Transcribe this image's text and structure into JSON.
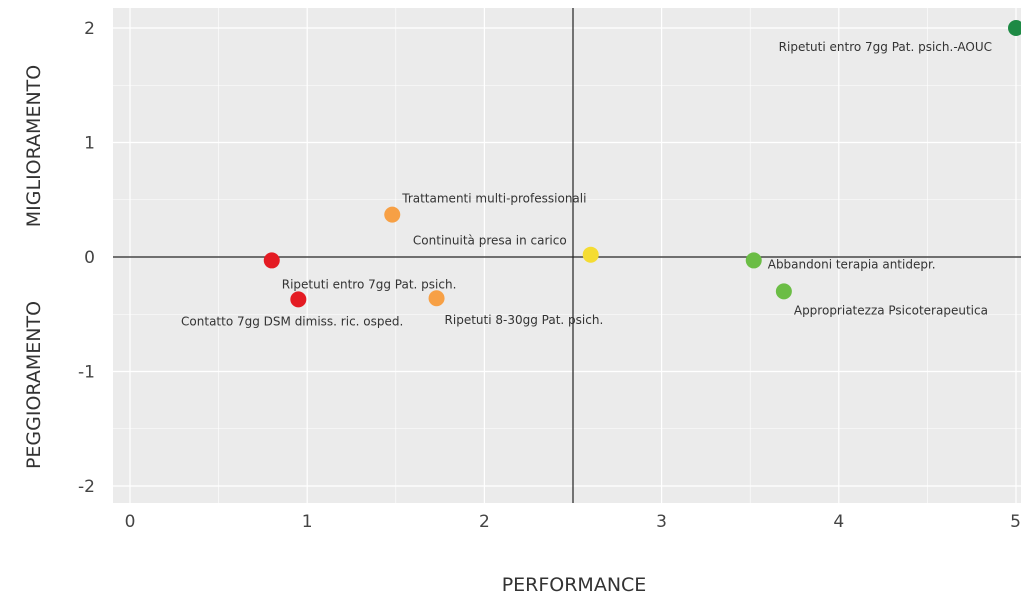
{
  "chart_data": {
    "type": "scatter",
    "xlabel": "PERFORMANCE",
    "ylabel_top": "MIGLIORAMENTO",
    "ylabel_bottom": "PEGGIORAMENTO",
    "xlim": [
      0,
      5
    ],
    "ylim": [
      -2,
      2
    ],
    "xticks": [
      0,
      1,
      2,
      3,
      4,
      5
    ],
    "yticks": [
      -2,
      -1,
      0,
      1,
      2
    ],
    "reference_lines": {
      "x": 2.5,
      "y": 0
    },
    "grid": true,
    "legend": "none",
    "background": "#ebebeb",
    "points": [
      {
        "label": "Ripetuti entro 7gg Pat. psich.-AOUC",
        "x": 5.0,
        "y": 2.0,
        "color": "#1e8a45"
      },
      {
        "label": "Trattamenti multi-professionali",
        "x": 1.48,
        "y": 0.37,
        "color": "#f7a045"
      },
      {
        "label": "Continuità presa in carico",
        "x": 2.6,
        "y": 0.02,
        "color": "#f5dc32"
      },
      {
        "label": "Abbandoni terapia antidepr.",
        "x": 3.52,
        "y": -0.03,
        "color": "#6bbd45"
      },
      {
        "label": "Appropriatezza Psicoterapeutica",
        "x": 3.69,
        "y": -0.3,
        "color": "#6bbd45"
      },
      {
        "label": "Ripetuti entro 7gg Pat. psich.",
        "x": 0.8,
        "y": -0.03,
        "color": "#e41b23"
      },
      {
        "label": "Contatto 7gg DSM dimiss. ric. osped.",
        "x": 0.95,
        "y": -0.37,
        "color": "#e41b23"
      },
      {
        "label": "Ripetuti 8-30gg Pat. psich.",
        "x": 1.73,
        "y": -0.36,
        "color": "#f7a045"
      }
    ]
  }
}
